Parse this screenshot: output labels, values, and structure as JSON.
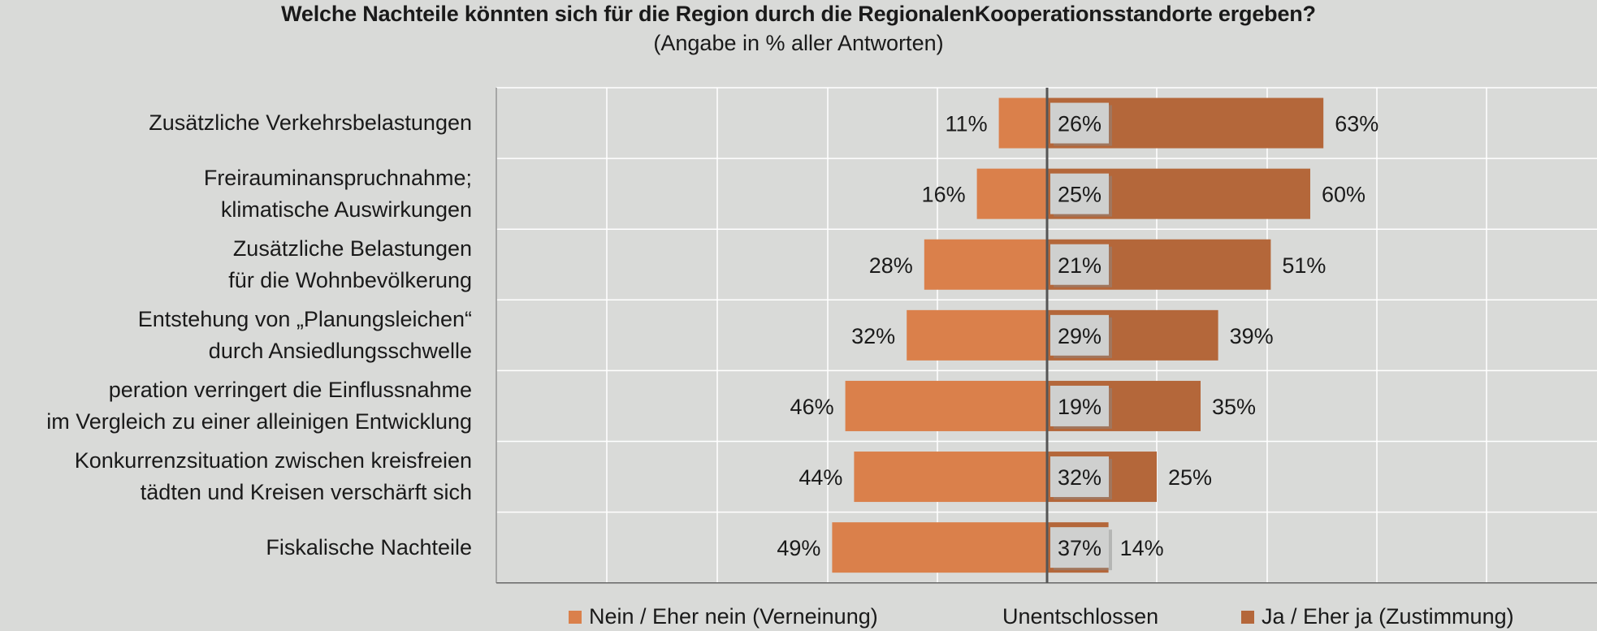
{
  "title": "Welche Nachteile könnten sich für die Region durch die RegionalenKooperationsstandorte ergeben?",
  "subtitle": "(Angabe in % aller Antworten)",
  "colors": {
    "nein": "#da804b",
    "ja": "#b4673a",
    "undecided_box": "#cfd0cf",
    "background": "#d9dad8",
    "grid": "#ffffff",
    "axis": "#555555"
  },
  "legend": {
    "nein": "Nein / Eher nein (Verneinung)",
    "unentschlossen": "Unentschlossen",
    "ja": "Ja / Eher ja (Zustimmung)"
  },
  "chart_data": {
    "type": "bar",
    "orientation": "horizontal-diverging",
    "title": "Welche Nachteile könnten sich für die Region durch die RegionalenKooperationsstandorte ergeben?",
    "subtitle": "(Angabe in % aller Antworten)",
    "categories": [
      [
        "Zusätzliche Verkehrsbelastungen"
      ],
      [
        "Freirauminanspruchnahme;",
        "klimatische Auswirkungen"
      ],
      [
        "Zusätzliche Belastungen",
        "für die Wohnbevölkerung"
      ],
      [
        "Entstehung von „Planungsleichen“",
        "durch Ansiedlungsschwelle"
      ],
      [
        "peration verringert die Einflussnahme",
        "im Vergleich zu einer alleinigen Entwicklung"
      ],
      [
        "Konkurrenzsituation zwischen kreisfreien",
        "tädten und Kreisen verschärft sich"
      ],
      [
        "Fiskalische Nachteile"
      ]
    ],
    "series": [
      {
        "name": "Nein / Eher nein (Verneinung)",
        "values": [
          11,
          16,
          28,
          32,
          46,
          44,
          49
        ],
        "labels": [
          "11%",
          "16%",
          "28%",
          "32%",
          "46%",
          "44%",
          "49%"
        ]
      },
      {
        "name": "Unentschlossen",
        "values": [
          26,
          25,
          21,
          29,
          19,
          32,
          37
        ],
        "labels": [
          "26%",
          "25%",
          "21%",
          "29%",
          "19%",
          "32%",
          "37%"
        ]
      },
      {
        "name": "Ja / Eher ja (Zustimmung)",
        "values": [
          63,
          60,
          51,
          39,
          35,
          25,
          14
        ],
        "labels": [
          "63%",
          "60%",
          "51%",
          "39%",
          "35%",
          "25%",
          "14%"
        ]
      }
    ],
    "xlim": [
      -100,
      100
    ],
    "grid": true,
    "legend_position": "bottom"
  }
}
